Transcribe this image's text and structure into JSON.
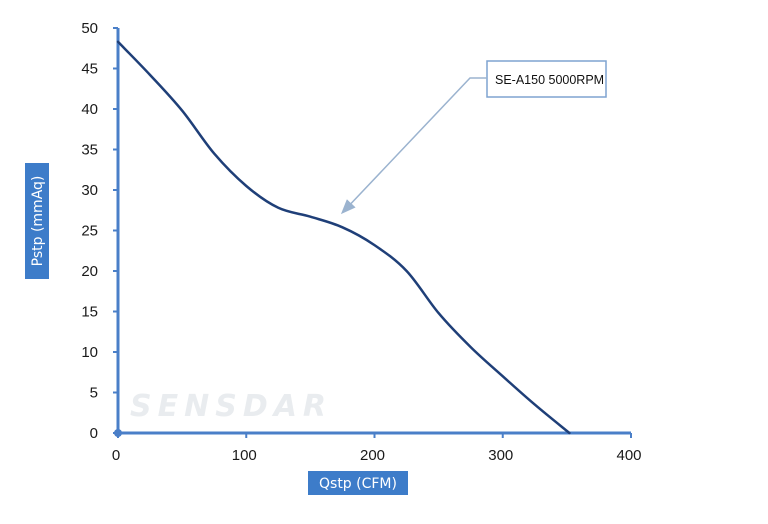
{
  "chart_data": {
    "type": "line",
    "xlabel": "Qstp (CFM)",
    "ylabel": "Pstp (mmAq)",
    "xlim": [
      0,
      400
    ],
    "ylim": [
      0,
      50
    ],
    "x_ticks": [
      0,
      100,
      200,
      300,
      400
    ],
    "y_ticks": [
      0,
      5,
      10,
      15,
      20,
      25,
      30,
      35,
      40,
      45,
      50
    ],
    "grid": false,
    "series": [
      {
        "name": "SE-A150 5000RPM",
        "color": "#1f3f78",
        "x": [
          0,
          25,
          50,
          75,
          100,
          125,
          150,
          175,
          200,
          225,
          250,
          275,
          300,
          325,
          352
        ],
        "y": [
          48.3,
          44.2,
          39.8,
          34.5,
          30.5,
          27.8,
          26.7,
          25.4,
          23.2,
          20.0,
          14.8,
          10.6,
          7.0,
          3.5,
          0
        ]
      }
    ],
    "annotation": {
      "text": "SE-A150 5000RPM",
      "points_to": [
        175,
        27
      ]
    },
    "watermark": "SENSDAR"
  },
  "colors": {
    "axis": "#4a7fc8",
    "label_bg": "#3d7cc9",
    "callout_border": "#7fa3d0",
    "arrow": "#9bb3cf"
  }
}
